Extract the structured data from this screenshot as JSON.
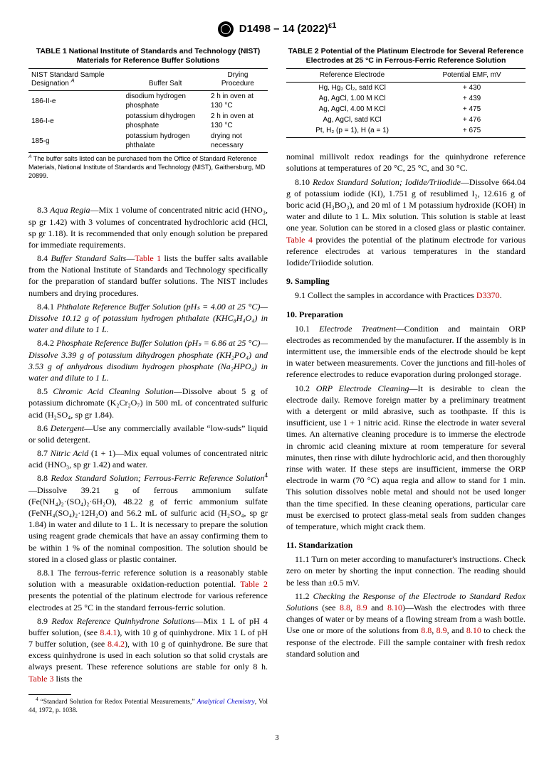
{
  "header": {
    "designation": "D1498 – 14 (2022)",
    "eps": "ε1"
  },
  "table1": {
    "title": "TABLE 1 National Institute of Standards and Technology (NIST) Materials for Reference Buffer Solutions",
    "col0": "NIST Standard Sample Designation",
    "col1": "Buffer Salt",
    "col2": "Drying Procedure",
    "r0c0": "186-II-e",
    "r0c1": "disodium hydrogen phosphate",
    "r0c2": "2 h in oven at 130 °C",
    "r1c0": "186-I-e",
    "r1c1": "potassium dihydrogen phosphate",
    "r1c2": "2 h in oven at 130 °C",
    "r2c0": "185-g",
    "r2c1": "potassium hydrogen phthalate",
    "r2c2": "drying not necessary",
    "footA": " The buffer salts listed can be purchased from the Office of Standard Reference Materials, National Institute of Standards and Technology (NIST), Gaithersburg, MD 20899."
  },
  "table2": {
    "title": "TABLE 2 Potential of the Platinum Electrode for Several Reference Electrodes at 25 °C in Ferrous-Ferric Reference Solution",
    "col0": "Reference Electrode",
    "col1": "Potential EMF, mV",
    "r0c0": "Hg, Hg₂ Cl₂, satd KCl",
    "r0c1": "+ 430",
    "r1c0": "Ag, AgCl, 1.00 M KCl",
    "r1c1": "+ 439",
    "r2c0": "Ag, AgCl, 4.00 M KCl",
    "r2c1": "+ 475",
    "r3c0": "Ag, AgCl, satd KCl",
    "r3c1": "+ 476",
    "r4c0": "Pt, H₂ (p = 1), H (a = 1)",
    "r4c1": "+ 675"
  },
  "p83": "—Mix 1 volume of concentrated nitric acid (HNO₃, sp gr 1.42) with 3 volumes of concentrated hydrochloric acid (HCl, sp gr 1.18). It is recommended that only enough solution be prepared for immediate requirements.",
  "p84a": "—",
  "p84b": " lists the buffer salts available from the National Institute of Standards and Technology specifically for the preparation of standard buffer solutions. The NIST includes numbers and drying procedures.",
  "p841": " (pHₛ = 4.00 at 25 °C)—Dissolve 10.12 g of potassium hydrogen phthalate (KHC₈H₄O₄) in water and dilute to 1 L.",
  "p842": " (pHₛ = 6.86 at 25 °C)—Dissolve 3.39 g of potassium dihydrogen phosphate (KH₂PO₄) and 3.53 g of anhydrous disodium hydrogen phosphate (Na₂HPO₄) in water and dilute to 1 L.",
  "p85": "—Dissolve about 5 g of potassium dichromate (K₂Cr₂O₇) in 500 mL of concentrated sulfuric acid (H₂SO₄, sp gr 1.84).",
  "p86": "—Use any commercially available “low-suds” liquid or solid detergent.",
  "p87": " (1 + 1)—Mix equal volumes of concentrated nitric acid (HNO₃, sp gr 1.42) and water.",
  "p88": "—Dissolve 39.21 g of ferrous ammonium sulfate (Fe(NH₄)₂·(SO₄)₂·6H₂O), 48.22 g of ferric ammonium sulfate (FeNH₄(SO₄)₂·12H₂O) and 56.2 mL of sulfuric acid (H₂SO₄, sp gr 1.84) in water and dilute to 1 L. It is necessary to prepare the solution using reagent grade chemicals that have an assay confirming them to be within 1 % of the nominal composition. The solution should be stored in a closed glass or plastic container.",
  "p881a": "8.8.1 The ferrous-ferric reference solution is a reasonably stable solution with a measurable oxidation-reduction potential. ",
  "p881b": " presents the potential of the platinum electrode for various reference electrodes at 25 °C in the standard ferrous-ferric solution.",
  "p89a": "—Mix 1 L of pH 4 buffer solution, (see ",
  "p89b": "), with 10 g of quinhydrone. Mix 1 L of pH 7 buffer solution, (see ",
  "p89c": "), with 10 g of quinhydrone. Be sure that excess quinhydrone is used in each solution so that solid crystals are always present. These reference solutions are stable for only 8 h. ",
  "p89d": " lists the",
  "col2top": "nominal millivolt redox readings for the quinhydrone reference solutions at temperatures of 20 °C, 25 °C, and 30 °C.",
  "p810a": "—Dissolve 664.04 g of potassium iodide (KI), 1.751 g of resublimed I₂, 12.616 g of boric acid (H₃BO₃), and 20 ml of 1 M potassium hydroxide (KOH) in water and dilute to 1 L. Mix solution. This solution is stable at least one year. Solution can be stored in a closed glass or plastic container. ",
  "p810b": " provides the potential of the platinum electrode for various reference electrodes at various temperatures in the standard Iodide/Triiodide solution.",
  "s9": "9. Sampling",
  "p91a": "9.1 Collect the samples in accordance with Practices ",
  "p91b": ".",
  "s10": "10. Preparation",
  "p101": "—Condition and maintain ORP electrodes as recommended by the manufacturer. If the assembly is in intermittent use, the immersible ends of the electrode should be kept in water between measurements. Cover the junctions and fill-holes of reference electrodes to reduce evaporation during prolonged storage.",
  "p102": "—It is desirable to clean the electrode daily. Remove foreign matter by a preliminary treatment with a detergent or mild abrasive, such as toothpaste. If this is insufficient, use 1 + 1 nitric acid. Rinse the electrode in water several times. An alternative cleaning procedure is to immerse the electrode in chromic acid cleaning mixture at room temperature for several minutes, then rinse with dilute hydrochloric acid, and then thoroughly rinse with water. If these steps are insufficient, immerse the ORP electrode in warm (70 °C) aqua regia and allow to stand for 1 min. This solution dissolves noble metal and should not be used longer than the time specified. In these cleaning operations, particular care must be exercised to protect glass-metal seals from sudden changes of temperature, which might crack them.",
  "s11": "11. Standarization",
  "p111": "11.1 Turn on meter according to manufacturer's instructions. Check zero on meter by shorting the input connection. The reading should be less than ±0.5 mV.",
  "p112a": " (see ",
  "p112b": " and ",
  "p112c": ")—Wash the electrodes with three changes of water or by means of a flowing stream from a wash bottle. Use one or more of the solutions from ",
  "p112d": ", and ",
  "p112e": " to check the response of the electrode. Fill the sample container with fresh redox standard solution and",
  "fn4a": " “Standard Solution for Redox Potential Measurements,” ",
  "fn4b": ", Vol 44, 1972, p. 1038.",
  "page": "3",
  "refs": {
    "t1": "Table 1",
    "t2": "Table 2",
    "t3": "Table 3",
    "t4": "Table 4",
    "s841": "8.4.1",
    "s842": "8.4.2",
    "s88": "8.8",
    "s89": "8.9",
    "s810": "8.10",
    "d3370": "D3370",
    "ac": "Analytical Chemistry"
  },
  "lbl": {
    "l83n": "8.3 ",
    "l83t": "Aqua Regia",
    "l84n": "8.4 ",
    "l84t": "Buffer Standard Salts",
    "l841n": "8.4.1 ",
    "l841t": "Phthalate Reference Buffer Solution",
    "l842n": "8.4.2 ",
    "l842t": "Phosphate Reference Buffer Solution",
    "l85n": "8.5 ",
    "l85t": "Chromic Acid Cleaning Solution",
    "l86n": "8.6 ",
    "l86t": "Detergent",
    "l87n": "8.7 ",
    "l87t": "Nitric Acid",
    "l88n": "8.8 ",
    "l88t": "Redox Standard Solution; Ferrous-Ferric Reference Solution",
    "l89n": "8.9 ",
    "l89t": "Redox Reference Quinhydrone Solutions",
    "l810n": "8.10 ",
    "l810t": "Redox Standard Solution; Iodide/Triiodide",
    "l101n": "10.1 ",
    "l101t": "Electrode Treatment",
    "l102n": "10.2 ",
    "l102t": "ORP Electrode Cleaning",
    "l112n": "11.2 ",
    "l112t": "Checking the Response of the Electrode to Standard Redox Solutions"
  }
}
